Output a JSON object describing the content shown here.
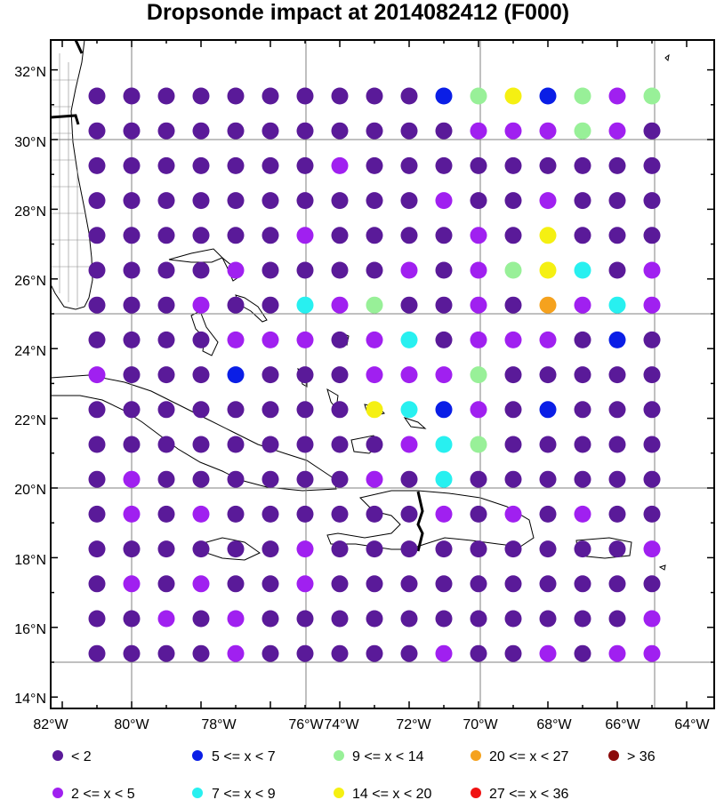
{
  "title": "Dropsonde impact at 2014082412 (F000)",
  "axes": {
    "lon_ticks": [
      "82°W",
      "80°W",
      "78°W",
      "76°W",
      "74°W",
      "72°W",
      "70°W",
      "68°W",
      "66°W",
      "64°W"
    ],
    "lat_ticks": [
      "14°N",
      "16°N",
      "18°N",
      "20°N",
      "22°N",
      "24°N",
      "26°N",
      "28°N",
      "30°N",
      "32°N"
    ],
    "lon_range": [
      -82,
      -64
    ],
    "lat_range": [
      14,
      33
    ]
  },
  "legend": [
    {
      "label": "<  2",
      "color": "#5a1a99"
    },
    {
      "label": "5 <= x <  7",
      "color": "#0a1ee6"
    },
    {
      "label": "9 <= x < 14",
      "color": "#98f098"
    },
    {
      "label": "20 <= x < 27",
      "color": "#f5a21e"
    },
    {
      "label": "> 36",
      "color": "#8b0a0a"
    },
    {
      "label": "2 <= x <  5",
      "color": "#a020f0"
    },
    {
      "label": "7 <= x <  9",
      "color": "#28f0f0"
    },
    {
      "label": "14 <= x < 20",
      "color": "#f5f012"
    },
    {
      "label": "27 <= x < 36",
      "color": "#f01212"
    }
  ],
  "chart_data": {
    "type": "scatter",
    "title": "Dropsonde impact at 2014082412 (F000)",
    "x_unit": "longitude (°W)",
    "y_unit": "latitude (°N)",
    "lons": [
      -81,
      -80,
      -79,
      -78,
      -77,
      -76,
      -75,
      -74,
      -73,
      -72,
      -71,
      -70,
      -69,
      -68,
      -67,
      -66,
      -65
    ],
    "lats": [
      31.25,
      30.25,
      29.25,
      28.25,
      27.25,
      26.25,
      25.25,
      24.25,
      23.25,
      22.25,
      21.25,
      20.25,
      19.25,
      18.25,
      17.25,
      16.25,
      15.25
    ],
    "category_key": "0: <2, 1: 2<=x<5, 2: 5<=x<7, 3: 7<=x<9, 4: 9<=x<14, 5: 14<=x<20, 6: 20<=x<27",
    "categories_grid": [
      [
        0,
        0,
        0,
        0,
        0,
        0,
        0,
        0,
        0,
        0,
        2,
        4,
        5,
        2,
        4,
        1,
        4
      ],
      [
        0,
        0,
        0,
        0,
        0,
        0,
        0,
        0,
        0,
        0,
        0,
        1,
        1,
        1,
        4,
        1,
        0
      ],
      [
        0,
        0,
        0,
        0,
        0,
        0,
        0,
        1,
        0,
        0,
        0,
        0,
        0,
        0,
        0,
        0,
        0
      ],
      [
        0,
        0,
        0,
        0,
        0,
        0,
        0,
        0,
        0,
        0,
        1,
        0,
        0,
        1,
        0,
        0,
        0
      ],
      [
        0,
        0,
        0,
        0,
        0,
        0,
        1,
        0,
        0,
        0,
        0,
        1,
        0,
        5,
        0,
        0,
        0
      ],
      [
        0,
        0,
        0,
        0,
        1,
        0,
        0,
        0,
        0,
        1,
        0,
        1,
        4,
        5,
        3,
        0,
        1
      ],
      [
        0,
        0,
        0,
        1,
        0,
        0,
        3,
        1,
        4,
        0,
        0,
        1,
        0,
        6,
        1,
        3,
        1
      ],
      [
        0,
        0,
        0,
        0,
        1,
        1,
        1,
        0,
        1,
        3,
        0,
        1,
        1,
        1,
        0,
        2,
        0
      ],
      [
        1,
        0,
        0,
        0,
        2,
        0,
        0,
        0,
        1,
        1,
        1,
        4,
        0,
        0,
        0,
        0,
        0
      ],
      [
        0,
        0,
        0,
        0,
        0,
        0,
        0,
        0,
        5,
        3,
        2,
        1,
        0,
        2,
        0,
        0,
        0
      ],
      [
        0,
        0,
        0,
        0,
        0,
        0,
        0,
        0,
        0,
        1,
        3,
        4,
        0,
        0,
        0,
        0,
        0
      ],
      [
        0,
        1,
        0,
        0,
        0,
        0,
        0,
        0,
        1,
        0,
        3,
        0,
        0,
        0,
        0,
        0,
        0
      ],
      [
        0,
        1,
        0,
        1,
        0,
        0,
        0,
        0,
        0,
        0,
        1,
        0,
        1,
        0,
        1,
        0,
        0
      ],
      [
        0,
        0,
        0,
        0,
        0,
        0,
        1,
        0,
        0,
        0,
        0,
        0,
        0,
        0,
        0,
        0,
        1
      ],
      [
        0,
        1,
        0,
        1,
        0,
        0,
        1,
        0,
        0,
        0,
        0,
        0,
        0,
        0,
        0,
        0,
        0
      ],
      [
        0,
        0,
        1,
        0,
        1,
        0,
        0,
        0,
        0,
        0,
        0,
        0,
        0,
        0,
        0,
        0,
        1
      ],
      [
        0,
        0,
        0,
        0,
        1,
        0,
        0,
        0,
        0,
        0,
        1,
        0,
        0,
        1,
        0,
        1,
        1
      ]
    ],
    "category_colors": [
      "#5a1a99",
      "#a020f0",
      "#0a1ee6",
      "#28f0f0",
      "#98f098",
      "#f5f012",
      "#f5a21e"
    ],
    "grid": true
  }
}
